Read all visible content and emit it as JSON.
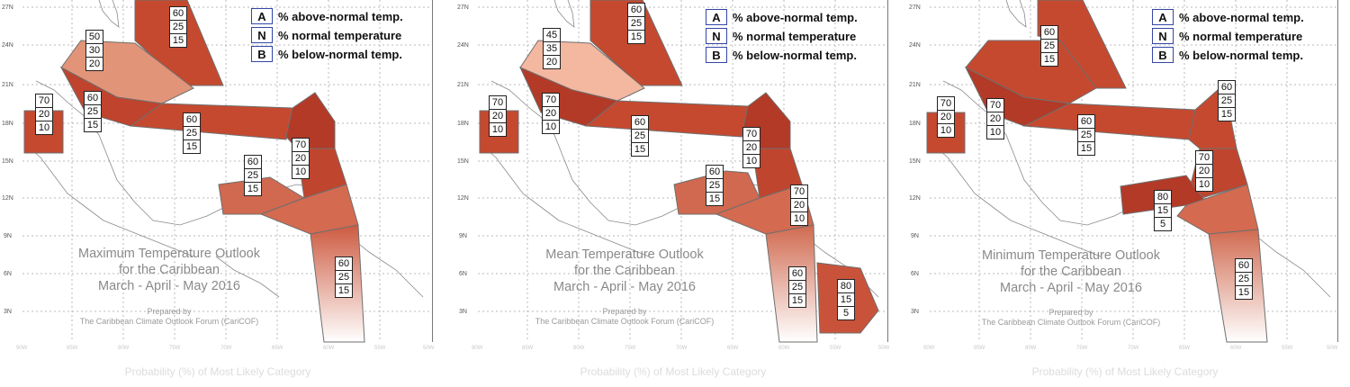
{
  "legend": [
    {
      "key": "A",
      "text": "% above-normal temp."
    },
    {
      "key": "N",
      "text": "% normal temperature"
    },
    {
      "key": "B",
      "text": "% below-normal temp."
    }
  ],
  "lat_labels": [
    "27N",
    "24N",
    "21N",
    "18N",
    "15N",
    "12N",
    "9N",
    "6N",
    "3N"
  ],
  "lon_labels": [
    "90W",
    "85W",
    "80W",
    "75W",
    "70W",
    "65W",
    "60W",
    "55W",
    "50W"
  ],
  "footer": "Probability (%) of Most Likely Category",
  "credit": [
    "Prepared by",
    "The Caribbean Climate Outlook Forum (CariCOF)"
  ],
  "colors": {
    "strong": "#b8402c",
    "medium": "#cd5a40",
    "light": "#e29478",
    "pale": "#f4b7a0",
    "fade": "#ffffff"
  },
  "panels": [
    {
      "id": "max",
      "title": [
        "Maximum Temperature Outlook",
        "for the Caribbean",
        "March - April - May 2016"
      ],
      "boxes": [
        {
          "region": "bahamas-north",
          "values": [
            "60",
            "25",
            "15"
          ]
        },
        {
          "region": "bahamas-cuba",
          "values": [
            "50",
            "30",
            "20"
          ]
        },
        {
          "region": "belize",
          "values": [
            "70",
            "20",
            "10"
          ]
        },
        {
          "region": "cuba-west",
          "values": [
            "60",
            "25",
            "15"
          ]
        },
        {
          "region": "greater-antilles",
          "values": [
            "60",
            "25",
            "15"
          ]
        },
        {
          "region": "lesser-antilles-north",
          "values": [
            "70",
            "20",
            "10"
          ]
        },
        {
          "region": "abc-islands",
          "values": [
            "60",
            "25",
            "15"
          ]
        },
        {
          "region": "guianas",
          "values": [
            "60",
            "25",
            "15"
          ]
        }
      ]
    },
    {
      "id": "mean",
      "title": [
        "Mean Temperature Outlook",
        "for the Caribbean",
        "March - April - May 2016"
      ],
      "boxes": [
        {
          "region": "bahamas-north",
          "values": [
            "60",
            "25",
            "15"
          ]
        },
        {
          "region": "bahamas-cuba",
          "values": [
            "45",
            "35",
            "20"
          ]
        },
        {
          "region": "belize",
          "values": [
            "70",
            "20",
            "10"
          ]
        },
        {
          "region": "cuba-west",
          "values": [
            "70",
            "20",
            "10"
          ]
        },
        {
          "region": "greater-antilles",
          "values": [
            "60",
            "25",
            "15"
          ]
        },
        {
          "region": "lesser-antilles-north",
          "values": [
            "70",
            "20",
            "10"
          ]
        },
        {
          "region": "abc-islands",
          "values": [
            "60",
            "25",
            "15"
          ]
        },
        {
          "region": "trinidad",
          "values": [
            "70",
            "20",
            "10"
          ]
        },
        {
          "region": "guyana",
          "values": [
            "60",
            "25",
            "15"
          ]
        },
        {
          "region": "suriname-guiana",
          "values": [
            "80",
            "15",
            "5"
          ]
        }
      ]
    },
    {
      "id": "min",
      "title": [
        "Minimum Temperature Outlook",
        "for the Caribbean",
        "March - April - May 2016"
      ],
      "boxes": [
        {
          "region": "bahamas-north",
          "values": [
            "60",
            "25",
            "15"
          ]
        },
        {
          "region": "belize",
          "values": [
            "70",
            "20",
            "10"
          ]
        },
        {
          "region": "cuba-west",
          "values": [
            "70",
            "20",
            "10"
          ]
        },
        {
          "region": "greater-antilles",
          "values": [
            "60",
            "25",
            "15"
          ]
        },
        {
          "region": "lesser-antilles-north",
          "values": [
            "60",
            "25",
            "15"
          ]
        },
        {
          "region": "trinidad",
          "values": [
            "70",
            "20",
            "10"
          ]
        },
        {
          "region": "abc-islands",
          "values": [
            "80",
            "15",
            "5"
          ]
        },
        {
          "region": "guianas",
          "values": [
            "60",
            "25",
            "15"
          ]
        }
      ]
    }
  ]
}
